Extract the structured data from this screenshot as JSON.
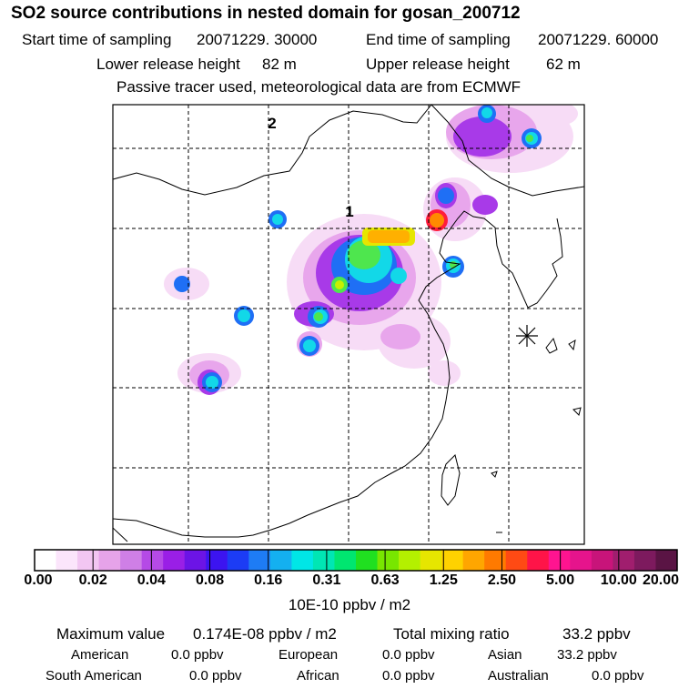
{
  "title": "SO2 source contributions in nested domain for gosan_200712",
  "header": {
    "start_label": "Start time of sampling",
    "start_value": "20071229. 30000",
    "end_label": "End time of sampling",
    "end_value": "20071229. 60000",
    "lower_label": "Lower release height",
    "lower_value": "82 m",
    "upper_label": "Upper release height",
    "upper_value": "62 m",
    "note": "Passive tracer used, meteorological data are from ECMWF"
  },
  "map": {
    "labels": {
      "domain1": "1",
      "domain2": "2"
    },
    "receptor_icon": "asterisk-receptor-icon"
  },
  "colorbar": {
    "ticks": [
      "0.00",
      "0.02",
      "0.04",
      "0.08",
      "0.16",
      "0.31",
      "0.63",
      "1.25",
      "2.50",
      "5.00",
      "10.00",
      "20.00"
    ],
    "units": "10E-10 ppbv / m2",
    "colors": [
      "#ffffff",
      "#fbe5fb",
      "#f2c6f2",
      "#e6a3e9",
      "#cf7fe6",
      "#b54ae6",
      "#9a1fe6",
      "#6c14e6",
      "#3c14f0",
      "#1c3cf5",
      "#1e7cf5",
      "#14b0f0",
      "#00e6e6",
      "#00e6b4",
      "#00e670",
      "#20e020",
      "#78e600",
      "#b4f000",
      "#e6e600",
      "#ffd200",
      "#ffa600",
      "#ff7a00",
      "#ff4a14",
      "#ff1448",
      "#ff1490",
      "#e6148c",
      "#c8147a",
      "#a01e6e",
      "#7d1a5e",
      "#5a1444"
    ]
  },
  "stats": {
    "max_label": "Maximum value",
    "max_value": "0.174E-08 ppbv / m2",
    "total_label": "Total mixing ratio",
    "total_value": "33.2 ppbv"
  },
  "regions": [
    {
      "name": "American",
      "value": "0.0 ppbv"
    },
    {
      "name": "European",
      "value": "0.0 ppbv"
    },
    {
      "name": "Asian",
      "value": "33.2 ppbv"
    },
    {
      "name": "South American",
      "value": "0.0 ppbv"
    },
    {
      "name": "African",
      "value": "0.0 ppbv"
    },
    {
      "name": "Australian",
      "value": "0.0 ppbv"
    }
  ]
}
